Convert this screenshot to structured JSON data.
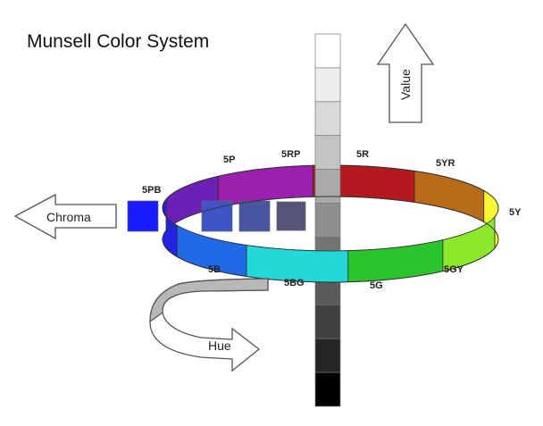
{
  "title": "Munsell Color System",
  "axes": {
    "value_label": "Value",
    "chroma_label": "Chroma",
    "hue_label": "Hue"
  },
  "hues": [
    {
      "label": "5R",
      "color": "#e8202a"
    },
    {
      "label": "5YR",
      "color": "#ef8a1e"
    },
    {
      "label": "5Y",
      "color": "#f7f733"
    },
    {
      "label": "5GY",
      "color": "#8ce82a"
    },
    {
      "label": "5G",
      "color": "#2bc42b"
    },
    {
      "label": "5BG",
      "color": "#22d8d8"
    },
    {
      "label": "5B",
      "color": "#1e6ae8"
    },
    {
      "label": "5PB",
      "color": "#2222e0"
    },
    {
      "label": "5P",
      "color": "#8a2be8"
    },
    {
      "label": "5RP",
      "color": "#c72ae0"
    }
  ],
  "value_scale_colors": [
    "#ffffff",
    "#eeeeee",
    "#d9d9d9",
    "#c4c4c4",
    "#aaaaaa",
    "#8f8f8f",
    "#747474",
    "#5a5a5a",
    "#404040",
    "#262626",
    "#000000"
  ],
  "chroma_scale_colors": [
    "#55557a",
    "#4a55a0",
    "#3f55c4",
    "#1a1aff"
  ]
}
